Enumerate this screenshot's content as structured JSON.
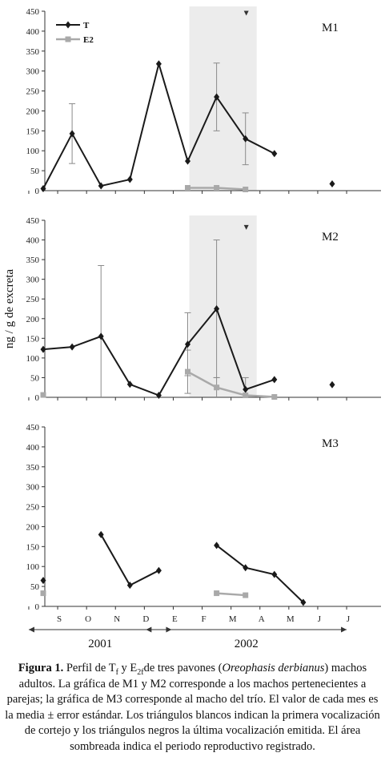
{
  "chart_data": [
    {
      "type": "line",
      "panel": "M1",
      "categories": [
        "S",
        "O",
        "N",
        "D",
        "E",
        "F",
        "M",
        "A",
        "M",
        "J",
        "J"
      ],
      "ylim": [
        0,
        450
      ],
      "yticks": [
        0,
        50,
        100,
        150,
        200,
        250,
        300,
        350,
        400,
        450
      ],
      "legend": [
        "T",
        "E2"
      ],
      "legend_position": "top-left",
      "shaded_months": [
        "F",
        "M",
        "A"
      ],
      "series": [
        {
          "name": "T",
          "color": "#1a1a1a",
          "marker": "diamond",
          "values": [
            5,
            143,
            12,
            28,
            318,
            74,
            235,
            130,
            93,
            null,
            17
          ],
          "error": [
            null,
            75,
            null,
            null,
            null,
            null,
            85,
            65,
            null,
            null,
            null
          ],
          "connected": [
            [
              0,
              4
            ],
            [
              4,
              8
            ]
          ],
          "isolated": [
            10
          ]
        },
        {
          "name": "E2",
          "color": "#a9a9a9",
          "marker": "square",
          "values": [
            null,
            null,
            null,
            null,
            null,
            7,
            7,
            3,
            null,
            null,
            null
          ],
          "error": [
            null,
            null,
            null,
            null,
            null,
            null,
            null,
            null,
            null,
            null,
            null
          ],
          "connected": [
            [
              5,
              7
            ]
          ],
          "isolated": []
        }
      ],
      "markers": [
        {
          "type": "last-vocalization",
          "shape": "black-triangle",
          "category_index": 7,
          "y": 445
        }
      ]
    },
    {
      "type": "line",
      "panel": "M2",
      "categories": [
        "S",
        "O",
        "N",
        "D",
        "E",
        "F",
        "M",
        "A",
        "M",
        "J",
        "J"
      ],
      "ylim": [
        0,
        450
      ],
      "yticks": [
        0,
        50,
        100,
        150,
        200,
        250,
        300,
        350,
        400,
        450
      ],
      "ylabel": "ng / g de excreta",
      "shaded_months": [
        "F",
        "M",
        "A"
      ],
      "series": [
        {
          "name": "T",
          "color": "#1a1a1a",
          "marker": "diamond",
          "values": [
            122,
            128,
            155,
            33,
            5,
            135,
            225,
            20,
            45,
            null,
            32
          ],
          "error": [
            null,
            null,
            180,
            null,
            null,
            80,
            175,
            30,
            null,
            null,
            null
          ],
          "connected": [
            [
              0,
              8
            ]
          ],
          "isolated": [
            10
          ]
        },
        {
          "name": "E2",
          "color": "#a9a9a9",
          "marker": "square",
          "values": [
            6,
            null,
            null,
            null,
            null,
            65,
            25,
            5,
            1,
            null,
            null
          ],
          "error": [
            null,
            null,
            null,
            null,
            null,
            55,
            25,
            null,
            null,
            null,
            null
          ],
          "connected": [
            [
              5,
              8
            ]
          ],
          "isolated": [
            0
          ]
        }
      ],
      "markers": [
        {
          "type": "last-vocalization",
          "shape": "black-triangle",
          "category_index": 7,
          "y": 432
        }
      ]
    },
    {
      "type": "line",
      "panel": "M3",
      "categories": [
        "S",
        "O",
        "N",
        "D",
        "E",
        "F",
        "M",
        "A",
        "M",
        "J",
        "J"
      ],
      "ylim": [
        0,
        450
      ],
      "yticks": [
        0,
        50,
        100,
        150,
        200,
        250,
        300,
        350,
        400,
        450
      ],
      "shaded_months": [],
      "series": [
        {
          "name": "T",
          "color": "#1a1a1a",
          "marker": "diamond",
          "values": [
            65,
            null,
            180,
            53,
            90,
            null,
            153,
            97,
            80,
            10,
            null
          ],
          "error": [
            null,
            null,
            null,
            null,
            null,
            null,
            null,
            null,
            null,
            null,
            null
          ],
          "connected": [
            [
              2,
              4
            ],
            [
              6,
              9
            ]
          ],
          "isolated": [
            0
          ]
        },
        {
          "name": "E2",
          "color": "#a9a9a9",
          "marker": "square",
          "values": [
            33,
            null,
            null,
            null,
            null,
            null,
            33,
            28,
            null,
            null,
            null
          ],
          "error": [
            null,
            null,
            null,
            null,
            null,
            null,
            null,
            null,
            null,
            null,
            null
          ],
          "connected": [
            [
              6,
              7
            ]
          ],
          "isolated": [
            0
          ]
        }
      ],
      "markers": []
    }
  ],
  "years": [
    {
      "label": "2001",
      "from_index": 0,
      "to_index": 4
    },
    {
      "label": "2002",
      "from_index": 4,
      "to_index": 10
    }
  ],
  "caption": {
    "label": "Figura 1.",
    "text_1": " Perfil de T",
    "sub_1": "f",
    "text_2": " y E",
    "sub_2": "2f",
    "text_3": "de tres pavones (",
    "species": "Oreophasis derbianus",
    "text_4": ") machos adultos. La gráfica de M1 y M2 corresponde a los machos pertenecientes a parejas; la gráfica de M3 corresponde al macho del trío. El valor de cada mes es la media ± error estándar. Los triángulos blancos indican la primera vocalización de cortejo y los triángulos negros la última vocalización emitida. El área sombreada indica el periodo reproductivo registrado."
  }
}
